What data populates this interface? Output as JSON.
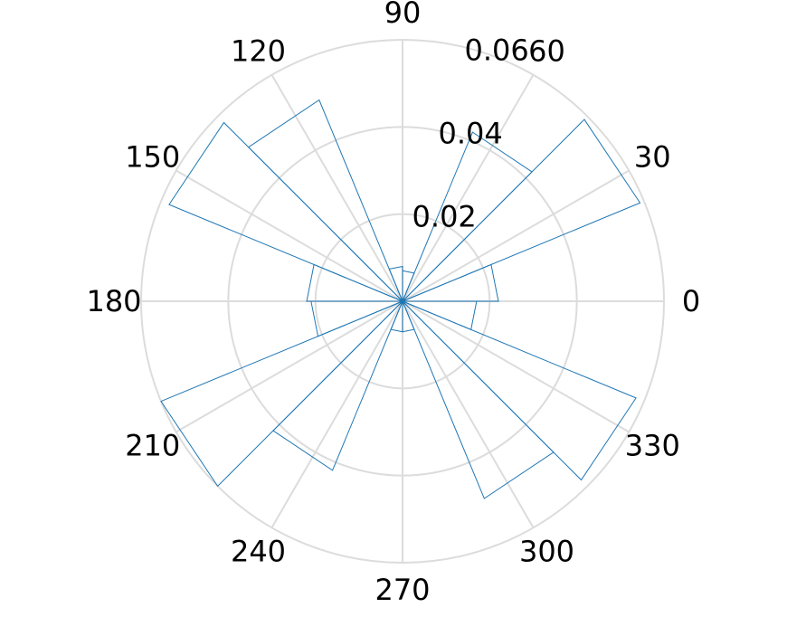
{
  "chart_data": {
    "type": "polar-histogram",
    "theta_unit": "degrees",
    "theta_ticks": [
      "0",
      "30",
      "60",
      "90",
      "120",
      "150",
      "180",
      "210",
      "240",
      "270",
      "300",
      "330"
    ],
    "r_ticks": [
      "0.02",
      "0.04",
      "0.06"
    ],
    "r_tick_values": [
      0.02,
      0.04,
      0.06
    ],
    "rlim": [
      0,
      0.06
    ],
    "grid": true,
    "bin_width_deg": 22.5,
    "bins": [
      {
        "start_deg": 0,
        "end_deg": 22.5,
        "value": 0.022
      },
      {
        "start_deg": 22.5,
        "end_deg": 45,
        "value": 0.059
      },
      {
        "start_deg": 45,
        "end_deg": 67.5,
        "value": 0.042
      },
      {
        "start_deg": 67.5,
        "end_deg": 90,
        "value": 0.007
      },
      {
        "start_deg": 90,
        "end_deg": 112.5,
        "value": 0.008
      },
      {
        "start_deg": 112.5,
        "end_deg": 135,
        "value": 0.05
      },
      {
        "start_deg": 135,
        "end_deg": 157.5,
        "value": 0.058
      },
      {
        "start_deg": 157.5,
        "end_deg": 180,
        "value": 0.022
      },
      {
        "start_deg": 180,
        "end_deg": 202.5,
        "value": 0.021
      },
      {
        "start_deg": 202.5,
        "end_deg": 225,
        "value": 0.06
      },
      {
        "start_deg": 225,
        "end_deg": 247.5,
        "value": 0.042
      },
      {
        "start_deg": 247.5,
        "end_deg": 270,
        "value": 0.007
      },
      {
        "start_deg": 270,
        "end_deg": 292.5,
        "value": 0.007
      },
      {
        "start_deg": 292.5,
        "end_deg": 315,
        "value": 0.049
      },
      {
        "start_deg": 315,
        "end_deg": 337.5,
        "value": 0.058
      },
      {
        "start_deg": 337.5,
        "end_deg": 360,
        "value": 0.017
      }
    ],
    "bar_color": "#1f77b4",
    "grid_color": "#dcdcdc"
  }
}
